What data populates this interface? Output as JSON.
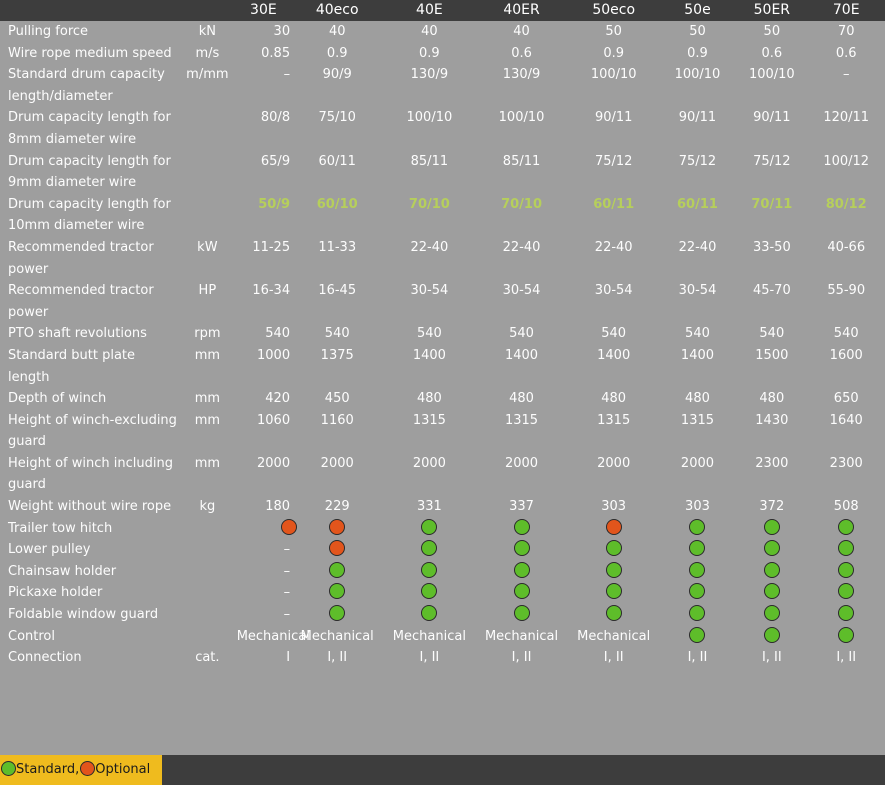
{
  "header": [
    "",
    "",
    "30E",
    "40eco",
    "40E",
    "40ER",
    "50eco",
    "50e",
    "50ER",
    "70E"
  ],
  "rows": [
    {
      "label": "Pulling force",
      "unit": "kN",
      "values": [
        "30",
        "40",
        "40",
        "40",
        "50",
        "50",
        "50",
        "70"
      ]
    },
    {
      "label": "Wire rope medium speed",
      "unit": "m/s",
      "values": [
        "0.85",
        "0.9",
        "0.9",
        "0.6",
        "0.9",
        "0.9",
        "0.6",
        "0.6"
      ]
    },
    {
      "label": "Standard drum capacity length/diameter",
      "unit": "m/mm",
      "values": [
        "–",
        "90/9",
        "130/9",
        "130/9",
        "100/10",
        "100/10",
        "100/10",
        "–"
      ]
    },
    {
      "label": "Drum capacity length for 8mm diameter wire",
      "unit": "",
      "values": [
        "80/8",
        "75/10",
        "100/10",
        "100/10",
        "90/11",
        "90/11",
        "90/11",
        "120/11"
      ]
    },
    {
      "label": "Drum capacity length for 9mm diameter wire",
      "unit": "",
      "values": [
        "65/9",
        "60/11",
        "85/11",
        "85/11",
        "75/12",
        "75/12",
        "75/12",
        "100/12"
      ]
    },
    {
      "label": "Drum capacity length for 10mm diameter wire",
      "unit": "",
      "values": [
        "50/9",
        "60/10",
        "70/10",
        "70/10",
        "60/11",
        "60/11",
        "70/11",
        "80/12"
      ],
      "highlight": true
    },
    {
      "label": "Recommended tractor power",
      "unit": "kW",
      "values": [
        "11-25",
        "11-33",
        "22-40",
        "22-40",
        "22-40",
        "22-40",
        "33-50",
        "40-66"
      ]
    },
    {
      "label": "Recommended tractor power",
      "unit": "HP",
      "values": [
        "16-34",
        "16-45",
        "30-54",
        "30-54",
        "30-54",
        "30-54",
        "45-70",
        "55-90"
      ]
    },
    {
      "label": "PTO shaft revolutions",
      "unit": "rpm",
      "values": [
        "540",
        "540",
        "540",
        "540",
        "540",
        "540",
        "540",
        "540"
      ]
    },
    {
      "label": "Standard butt plate length",
      "unit": "mm",
      "values": [
        "1000",
        "1375",
        "1400",
        "1400",
        "1400",
        "1400",
        "1500",
        "1600"
      ]
    },
    {
      "label": "Depth of winch",
      "unit": "mm",
      "values": [
        "420",
        "450",
        "480",
        "480",
        "480",
        "480",
        "480",
        "650"
      ]
    },
    {
      "label": "Height of winch-excluding guard",
      "unit": "mm",
      "values": [
        "1060",
        "1160",
        "1315",
        "1315",
        "1315",
        "1315",
        "1430",
        "1640"
      ]
    },
    {
      "label": "Height of winch including guard",
      "unit": "mm",
      "values": [
        "2000",
        "2000",
        "2000",
        "2000",
        "2000",
        "2000",
        "2300",
        "2300"
      ]
    },
    {
      "label": "Weight without wire rope",
      "unit": "kg",
      "values": [
        "180",
        "229",
        "331",
        "337",
        "303",
        "303",
        "372",
        "508"
      ]
    },
    {
      "label": "Trailer tow hitch",
      "unit": "",
      "values": [
        "optional",
        "optional",
        "standard",
        "standard",
        "optional",
        "standard",
        "standard",
        "standard"
      ]
    },
    {
      "label": "Lower pulley",
      "unit": "",
      "values": [
        "–",
        "optional",
        "standard",
        "standard",
        "standard",
        "standard",
        "standard",
        "standard"
      ]
    },
    {
      "label": "Chainsaw holder",
      "unit": "",
      "values": [
        "–",
        "standard",
        "standard",
        "standard",
        "standard",
        "standard",
        "standard",
        "standard"
      ]
    },
    {
      "label": "Pickaxe holder",
      "unit": "",
      "values": [
        "–",
        "standard",
        "standard",
        "standard",
        "standard",
        "standard",
        "standard",
        "standard"
      ]
    },
    {
      "label": "Foldable window guard",
      "unit": "",
      "values": [
        "–",
        "standard",
        "standard",
        "standard",
        "standard",
        "standard",
        "standard",
        "standard"
      ]
    },
    {
      "label": "Control",
      "unit": "",
      "values": [
        "Mechanical",
        "Mechanical",
        "Mechanical",
        "Mechanical",
        "Mechanical",
        "standard",
        "standard",
        "standard"
      ]
    },
    {
      "label": "Connection",
      "unit": "cat.",
      "values": [
        "I",
        "I, II",
        "I, II",
        "I, II",
        "I, II",
        "I, II",
        "I, II",
        "I, II"
      ]
    }
  ],
  "legend": {
    "standard_label": "Standard,",
    "optional_label": "Optional"
  },
  "colors": {
    "standard": "#5ebd2a",
    "optional": "#e2551c",
    "highlight": "#b6cf5b",
    "footer": "#3d3d3d",
    "legend_bg": "#efbb1e"
  }
}
